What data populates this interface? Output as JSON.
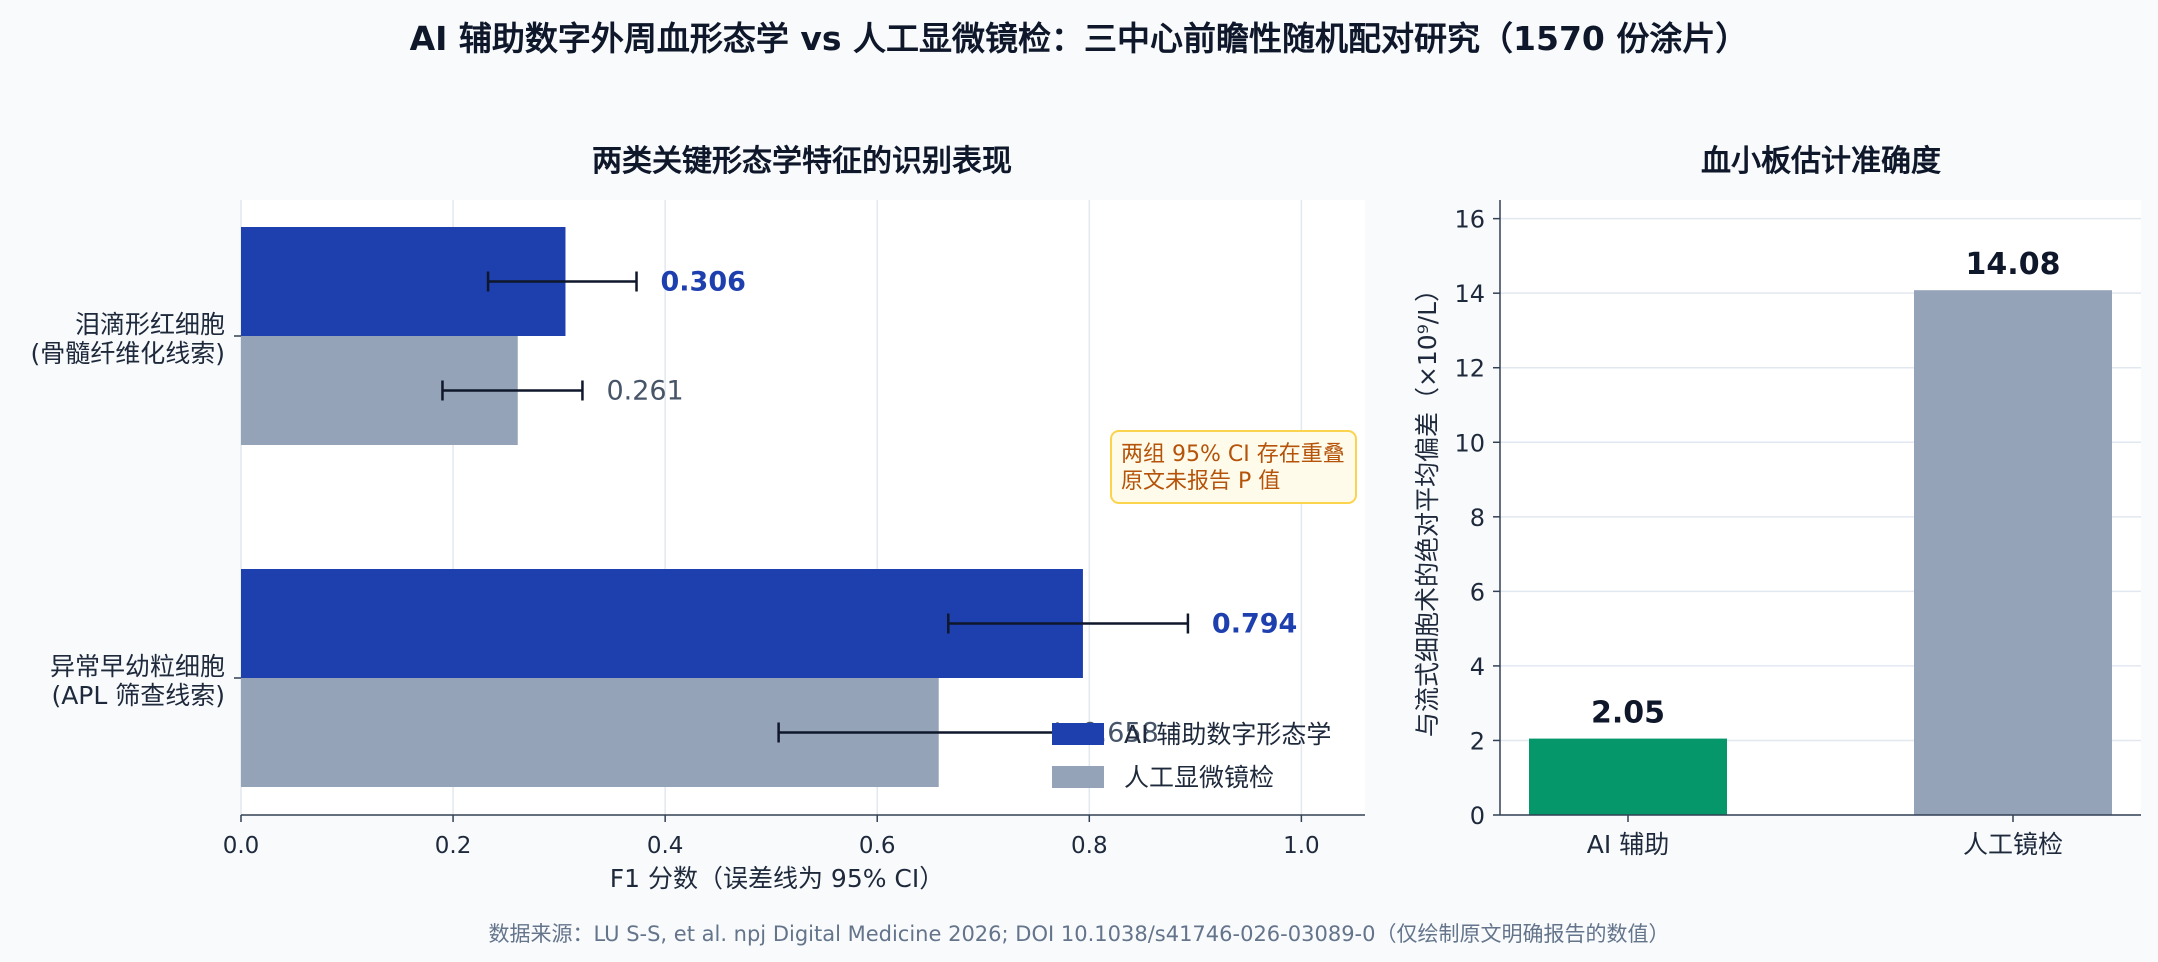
{
  "title": "AI 辅助数字外周血形态学 vs 人工显微镜检：三中心前瞻性随机配对研究（1570 份涂片）",
  "footer": "数据来源：LU S-S, et al. npj Digital Medicine 2026; DOI 10.1038/s41746-026-03089-0（仅绘制原文明确报告的数值）",
  "colors": {
    "ai": "#1e40af",
    "manual": "#94a3b8",
    "ai_platelet": "#059669",
    "annotation_border": "#fcd34d",
    "annotation_fill": "#fffbeb",
    "annotation_text": "#b45309"
  },
  "chart_data": [
    {
      "type": "bar",
      "orientation": "horizontal",
      "title": "两类关键形态学特征的识别表现",
      "xlabel": "F1 分数（误差线为 95% CI）",
      "xlim": [
        0,
        1.06
      ],
      "xticks": [
        "0.0",
        "0.2",
        "0.4",
        "0.6",
        "0.8",
        "1.0"
      ],
      "xtick_values": [
        0,
        0.2,
        0.4,
        0.6,
        0.8,
        1.0
      ],
      "grid": "vertical",
      "categories": [
        {
          "line1": "泪滴形红细胞",
          "line2": "(骨髓纤维化线索)"
        },
        {
          "line1": "异常早幼粒细胞",
          "line2": "(APL 筛查线索)"
        }
      ],
      "series": [
        {
          "name": "AI 辅助数字形态学",
          "values": [
            0.306,
            0.794
          ],
          "ci_low": [
            0.233,
            0.667
          ],
          "ci_high": [
            0.373,
            0.893
          ],
          "labels": [
            "0.306",
            "0.794"
          ]
        },
        {
          "name": "人工显微镜检",
          "values": [
            0.261,
            0.658
          ],
          "ci_low": [
            0.19,
            0.507
          ],
          "ci_high": [
            0.322,
            0.77
          ],
          "labels": [
            "0.261",
            "0.658"
          ]
        }
      ],
      "legend": "bottom-right",
      "annotation": {
        "line1": "两组 95% CI 存在重叠",
        "line2": "原文未报告 P 值"
      }
    },
    {
      "type": "bar",
      "title": "血小板估计准确度",
      "ylabel": "与流式细胞术的绝对平均偏差（×10⁹/L）",
      "ylim": [
        0,
        16.5
      ],
      "yticks": [
        "0",
        "2",
        "4",
        "6",
        "8",
        "10",
        "12",
        "14",
        "16"
      ],
      "ytick_values": [
        0,
        2,
        4,
        6,
        8,
        10,
        12,
        14,
        16
      ],
      "grid": "horizontal",
      "categories": [
        "AI 辅助",
        "人工镜检"
      ],
      "values": [
        2.05,
        14.08
      ],
      "labels": [
        "2.05",
        "14.08"
      ]
    }
  ]
}
